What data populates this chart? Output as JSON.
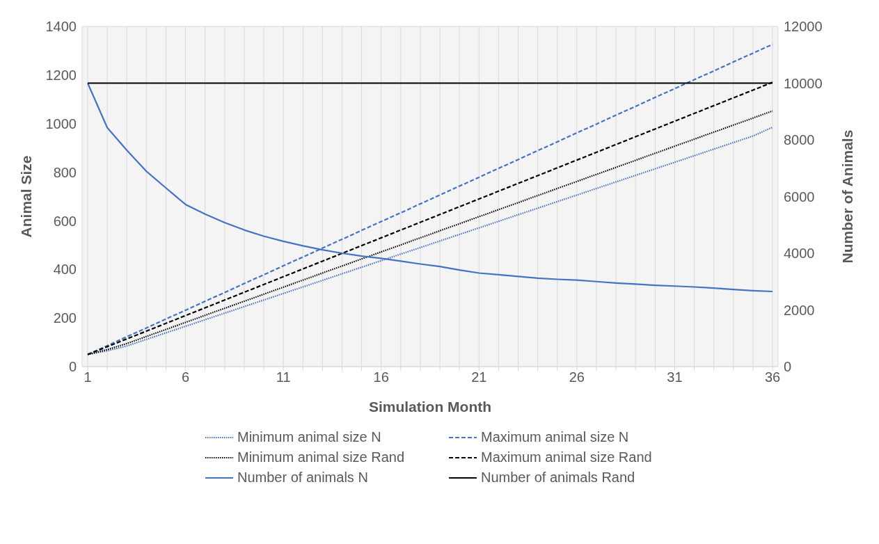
{
  "chart_data": {
    "type": "line",
    "xlabel": "Simulation Month",
    "ylabel": "Animal Size",
    "y2label": "Number of Animals",
    "categories": [
      "1",
      null,
      null,
      null,
      null,
      "6",
      null,
      null,
      null,
      null,
      "11",
      null,
      null,
      null,
      null,
      "16",
      null,
      null,
      null,
      null,
      "21",
      null,
      null,
      null,
      null,
      "26",
      null,
      null,
      null,
      null,
      "31",
      null,
      null,
      null,
      null,
      "36"
    ],
    "ylim": [
      0,
      1400
    ],
    "yticks": [
      0,
      200,
      400,
      600,
      800,
      1000,
      1200,
      1400
    ],
    "y2lim": [
      0,
      12000
    ],
    "y2ticks": [
      0,
      2000,
      4000,
      6000,
      8000,
      10000,
      12000
    ],
    "grid": true,
    "legend": "bottom",
    "marker": "none",
    "series": [
      {
        "name": "Minimum animal size N",
        "color": "#4472c4",
        "line_style": "dotted",
        "values": [
          50,
          65,
          85,
          112,
          139,
          166,
          193,
          220,
          247,
          274,
          301,
          328,
          355,
          382,
          409,
          436,
          463,
          490,
          517,
          544,
          571,
          598,
          625,
          652,
          679,
          706,
          733,
          760,
          787,
          814,
          841,
          868,
          895,
          922,
          949,
          985
        ]
      },
      {
        "name": "Maximum animal size N",
        "color": "#4472c4",
        "line_style": "dashed",
        "values": [
          50,
          86,
          123,
          159,
          196,
          232,
          269,
          305,
          342,
          378,
          415,
          451,
          488,
          524,
          561,
          597,
          633,
          670,
          706,
          743,
          779,
          816,
          852,
          889,
          925,
          962,
          998,
          1035,
          1071,
          1108,
          1144,
          1181,
          1217,
          1254,
          1290,
          1326
        ]
      },
      {
        "name": "Minimum animal size Rand",
        "color": "#000000",
        "line_style": "dotted",
        "values": [
          50,
          70,
          95,
          124,
          153,
          182,
          211,
          240,
          269,
          298,
          327,
          356,
          385,
          414,
          443,
          472,
          501,
          530,
          559,
          588,
          617,
          646,
          675,
          704,
          733,
          762,
          791,
          820,
          849,
          878,
          907,
          936,
          965,
          994,
          1023,
          1052
        ]
      },
      {
        "name": "Maximum animal size Rand",
        "color": "#000000",
        "line_style": "dashed",
        "values": [
          50,
          82,
          114,
          146,
          178,
          210,
          242,
          274,
          306,
          338,
          370,
          402,
          434,
          466,
          498,
          530,
          562,
          594,
          626,
          658,
          690,
          722,
          754,
          786,
          818,
          850,
          882,
          914,
          946,
          978,
          1010,
          1042,
          1074,
          1106,
          1138,
          1170
        ]
      },
      {
        "name": "Number of animals N",
        "color": "#4472c4",
        "line_style": "solid",
        "axis": "y2",
        "values": [
          10000,
          8430,
          7630,
          6890,
          6300,
          5720,
          5380,
          5080,
          4820,
          4600,
          4420,
          4260,
          4120,
          4000,
          3900,
          3820,
          3720,
          3620,
          3530,
          3410,
          3300,
          3240,
          3180,
          3120,
          3080,
          3050,
          3000,
          2950,
          2910,
          2870,
          2840,
          2810,
          2770,
          2720,
          2680,
          2650
        ]
      },
      {
        "name": "Number of animals Rand",
        "color": "#000000",
        "line_style": "solid",
        "axis": "y2",
        "values": [
          10000,
          10000,
          10000,
          10000,
          10000,
          10000,
          10000,
          10000,
          10000,
          10000,
          10000,
          10000,
          10000,
          10000,
          10000,
          10000,
          10000,
          10000,
          10000,
          10000,
          10000,
          10000,
          10000,
          10000,
          10000,
          10000,
          10000,
          10000,
          10000,
          10000,
          10000,
          10000,
          10000,
          10000,
          10000,
          10000
        ]
      }
    ]
  }
}
